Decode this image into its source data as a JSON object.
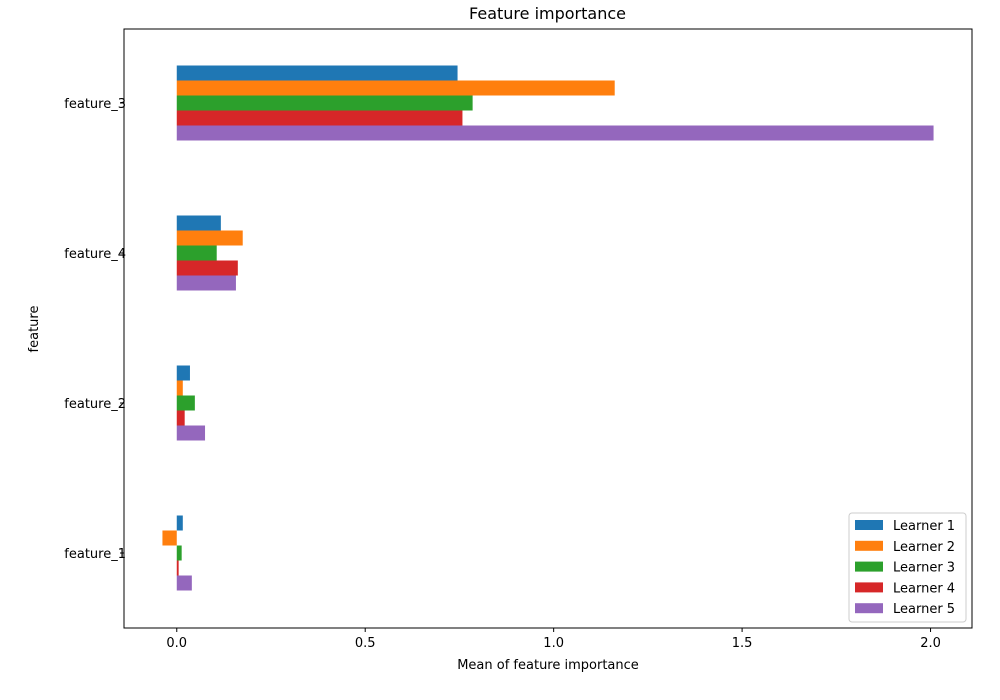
{
  "chart_data": {
    "type": "bar",
    "orientation": "horizontal",
    "title": "Feature importance",
    "xlabel": "Mean of feature importance",
    "ylabel": "feature",
    "categories": [
      "feature_1",
      "feature_2",
      "feature_4",
      "feature_3"
    ],
    "xlim": [
      -0.14,
      2.11
    ],
    "xticks": [
      0.0,
      0.5,
      1.0,
      1.5,
      2.0
    ],
    "xtick_labels": [
      "0.0",
      "0.5",
      "1.0",
      "1.5",
      "2.0"
    ],
    "grid": false,
    "legend_position": "lower right",
    "series": [
      {
        "name": "Learner 1",
        "color": "#1f77b4",
        "values": [
          0.016,
          0.035,
          0.117,
          0.745
        ]
      },
      {
        "name": "Learner 2",
        "color": "#ff7f0e",
        "values": [
          -0.038,
          0.016,
          0.175,
          1.162
        ]
      },
      {
        "name": "Learner 3",
        "color": "#2ca02c",
        "values": [
          0.013,
          0.048,
          0.106,
          0.785
        ]
      },
      {
        "name": "Learner 4",
        "color": "#d62728",
        "values": [
          0.005,
          0.021,
          0.162,
          0.758
        ]
      },
      {
        "name": "Learner 5",
        "color": "#9467bd",
        "values": [
          0.04,
          0.075,
          0.157,
          2.008
        ]
      }
    ]
  }
}
